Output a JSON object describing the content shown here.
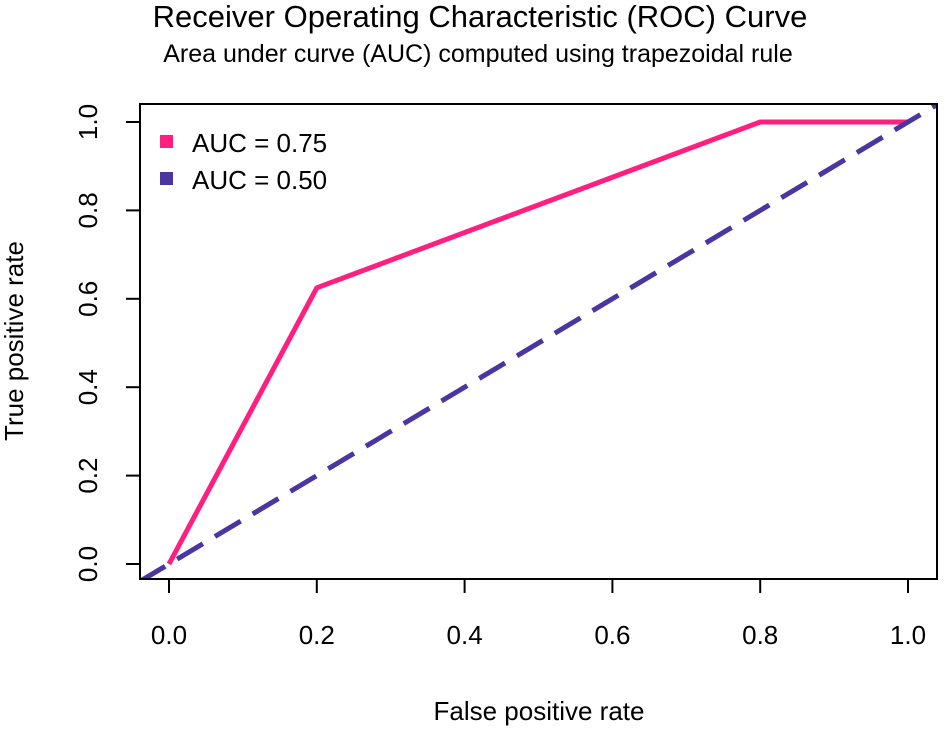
{
  "chart_data": {
    "type": "line",
    "title": "Receiver Operating Characteristic (ROC) Curve",
    "subtitle": "Area under curve (AUC) computed using trapezoidal rule",
    "xlabel": "False positive rate",
    "ylabel": "True positive rate",
    "xlim": [
      0.0,
      1.0
    ],
    "ylim": [
      0.0,
      1.0
    ],
    "x_ticks": [
      0.0,
      0.2,
      0.4,
      0.6,
      0.8,
      1.0
    ],
    "y_ticks": [
      0.0,
      0.2,
      0.4,
      0.6,
      0.8,
      1.0
    ],
    "x_tick_labels": [
      "0.0",
      "0.2",
      "0.4",
      "0.6",
      "0.8",
      "1.0"
    ],
    "y_tick_labels": [
      "0.0",
      "0.2",
      "0.4",
      "0.6",
      "0.8",
      "1.0"
    ],
    "grid": false,
    "legend_position": "top-left",
    "series": [
      {
        "name": "AUC = 0.75",
        "color": "#FF1F7F",
        "style": "solid",
        "x": [
          0.0,
          0.2,
          0.8,
          1.0
        ],
        "y": [
          0.0,
          0.625,
          1.0,
          1.0
        ]
      },
      {
        "name": "AUC = 0.50",
        "color": "#4B35A0",
        "style": "dashed",
        "x": [
          -0.04,
          1.04
        ],
        "y": [
          -0.04,
          1.04
        ]
      }
    ]
  }
}
